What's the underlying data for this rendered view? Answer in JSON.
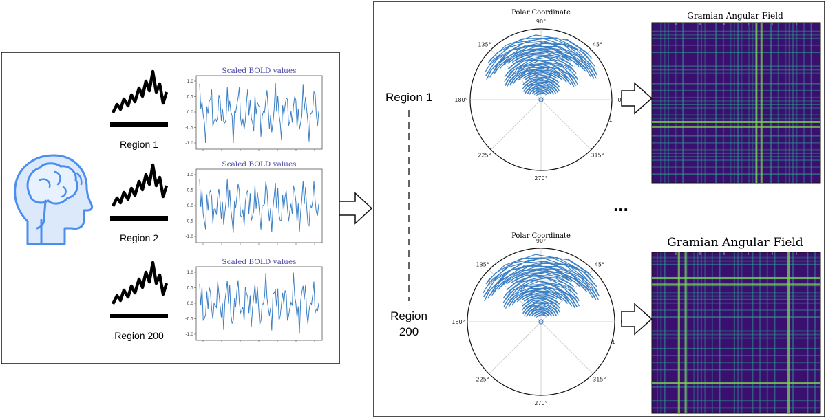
{
  "left_panel": {
    "regions": [
      {
        "label": "Region 1",
        "plot_title": "Scaled BOLD values"
      },
      {
        "label": "Region 2",
        "plot_title": "Scaled BOLD values"
      },
      {
        "label": "Region 200",
        "plot_title": "Scaled BOLD values"
      }
    ],
    "yticks": [
      "1.0",
      "0.5",
      "0.0",
      "-0.5",
      "-1.0"
    ]
  },
  "right_panel": {
    "region_top": "Region 1",
    "region_bottom_line1": "Region",
    "region_bottom_line2": "200",
    "ellipsis": "...",
    "polar_top": {
      "title": "Polar Coordinate",
      "angles": [
        "90°",
        "45°",
        "0°",
        "315°",
        "270°",
        "225°",
        "180°",
        "135°"
      ],
      "radial_tick": "1"
    },
    "polar_bottom": {
      "title": "Polar Coordinate",
      "angles": [
        "90°",
        "45°",
        "0°",
        "315°",
        "270°",
        "225°",
        "180°",
        "135°"
      ],
      "radial_tick": "1"
    },
    "gaf_top": {
      "title": "Gramian Angular Field"
    },
    "gaf_bottom": {
      "title": "Gramian Angular Field"
    }
  },
  "colors": {
    "signal_line": "#3b7fc4",
    "plot_title": "#4a4aa8",
    "icon_blue": "#4a8ff0",
    "icon_fill": "#dce9fb",
    "gaf_bg": "#3b0f6f",
    "gaf_line": "#2a9d8f",
    "gaf_bright": "#7fd34e"
  }
}
